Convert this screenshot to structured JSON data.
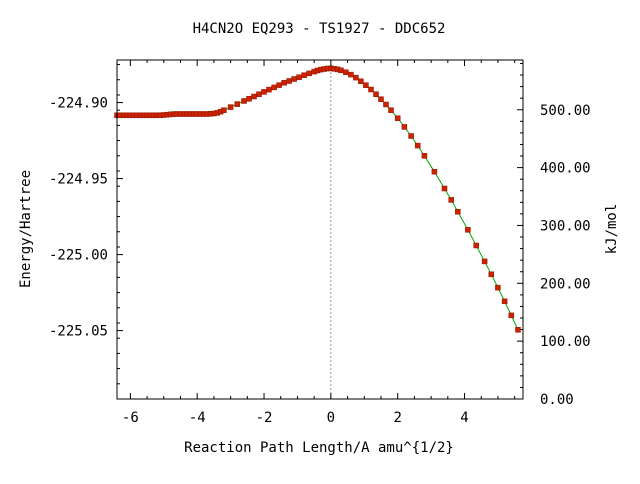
{
  "chart_data": {
    "type": "scatter",
    "title": "H4CN2O   EQ293 - TS1927 - DDC652",
    "xlabel": "Reaction Path Length/A amu^{1/2}",
    "ylabel": "Energy/Hartree",
    "y2label": "kJ/mol",
    "xlim": [
      -6.4,
      5.75
    ],
    "ylim": [
      -225.095,
      -224.872
    ],
    "y2lim": [
      0.0,
      586.0
    ],
    "xticks": [
      -6,
      -4,
      -2,
      0,
      2,
      4
    ],
    "xtick_labels": [
      "-6",
      "-4",
      "-2",
      "0",
      "2",
      "4"
    ],
    "yticks": [
      -224.9,
      -224.95,
      -225.0,
      -225.05
    ],
    "ytick_labels": [
      "-224.90",
      "-224.95",
      "-225.00",
      "-225.05"
    ],
    "y2ticks": [
      0,
      100,
      200,
      300,
      400,
      500
    ],
    "y2tick_labels": [
      "0.00",
      "100.00",
      "200.00",
      "300.00",
      "400.00",
      "500.00"
    ],
    "grid": false,
    "ts_marker_x": 0,
    "colors": {
      "points": "#cc2200",
      "curve": "#00aa00",
      "ts_line": "#999999",
      "axes": "#000000"
    },
    "series": [
      {
        "x": [
          -6.4,
          -6.3,
          -6.2,
          -6.1,
          -6.0,
          -5.9,
          -5.8,
          -5.7,
          -5.6,
          -5.5,
          -5.4,
          -5.3,
          -5.2,
          -5.1,
          -5.0,
          -4.9,
          -4.8,
          -4.7,
          -4.6,
          -4.5,
          -4.4,
          -4.3,
          -4.2,
          -4.1,
          -4.0,
          -3.9,
          -3.8,
          -3.7,
          -3.6,
          -3.5,
          -3.4,
          -3.3,
          -3.2,
          -3.0,
          -2.8,
          -2.6,
          -2.45,
          -2.3,
          -2.15,
          -2.0,
          -1.85,
          -1.7,
          -1.55,
          -1.4,
          -1.25,
          -1.1,
          -0.95,
          -0.8,
          -0.65,
          -0.5,
          -0.4,
          -0.3,
          -0.2,
          -0.1,
          0.0,
          0.1,
          0.2,
          0.3,
          0.45,
          0.6,
          0.75,
          0.9,
          1.05,
          1.2,
          1.35,
          1.5,
          1.65,
          1.8,
          2.0,
          2.2,
          2.4,
          2.6,
          2.8,
          3.1,
          3.4,
          3.6,
          3.8,
          4.1,
          4.35,
          4.6,
          4.8,
          5.0,
          5.2,
          5.4,
          5.6
        ],
        "y": [
          -224.9084,
          -224.9084,
          -224.9084,
          -224.9084,
          -224.9084,
          -224.9084,
          -224.9084,
          -224.9084,
          -224.9084,
          -224.9084,
          -224.9084,
          -224.9084,
          -224.9084,
          -224.9083,
          -224.9082,
          -224.908,
          -224.9078,
          -224.9076,
          -224.9075,
          -224.9075,
          -224.9075,
          -224.9075,
          -224.9075,
          -224.9075,
          -224.9075,
          -224.9075,
          -224.9075,
          -224.9075,
          -224.9074,
          -224.9072,
          -224.9068,
          -224.906,
          -224.905,
          -224.903,
          -224.901,
          -224.899,
          -224.8975,
          -224.896,
          -224.8945,
          -224.893,
          -224.8915,
          -224.89,
          -224.8885,
          -224.887,
          -224.8858,
          -224.8845,
          -224.8833,
          -224.882,
          -224.8808,
          -224.8796,
          -224.8789,
          -224.8783,
          -224.8779,
          -224.8776,
          -224.8775,
          -224.8778,
          -224.8782,
          -224.8788,
          -224.88,
          -224.8816,
          -224.8836,
          -224.886,
          -224.8886,
          -224.8914,
          -224.8945,
          -224.8978,
          -224.9013,
          -224.905,
          -224.9103,
          -224.916,
          -224.922,
          -224.9283,
          -224.935,
          -224.9455,
          -224.9565,
          -224.964,
          -224.9718,
          -224.9837,
          -224.994,
          -225.0045,
          -225.013,
          -225.0217,
          -225.0307,
          -225.04,
          -225.0495
        ]
      }
    ]
  }
}
